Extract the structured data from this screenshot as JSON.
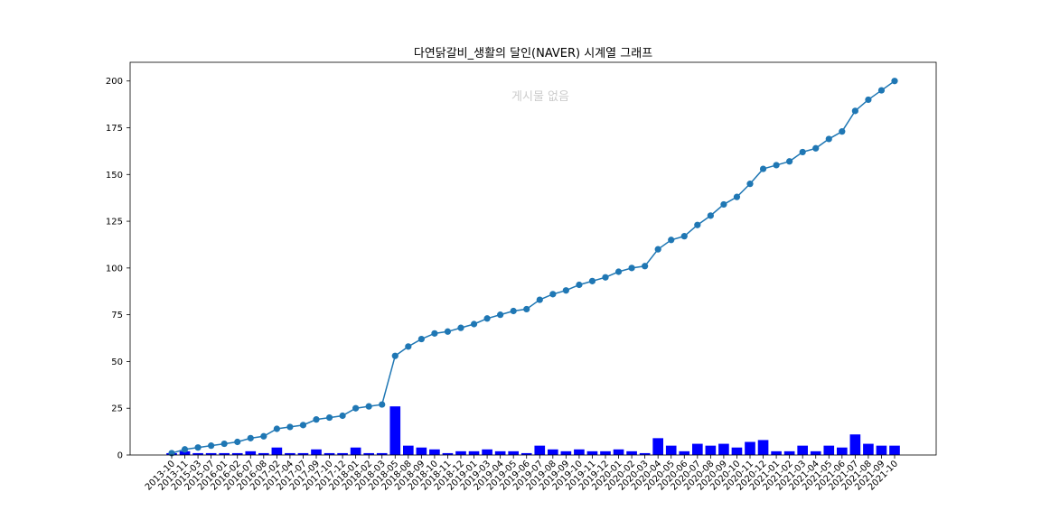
{
  "chart_data": {
    "type": "bar+line",
    "title": "다연닭갈비_생활의 달인(NAVER) 시계열 그래프",
    "annotation": "게시물 없음",
    "xlabel": "",
    "ylabel": "",
    "ylim": [
      0,
      210
    ],
    "yticks": [
      0,
      25,
      50,
      75,
      100,
      125,
      150,
      175,
      200
    ],
    "grid": false,
    "categories": [
      "2013-10",
      "2013-11",
      "2015-03",
      "2015-07",
      "2016-01",
      "2016-02",
      "2016-07",
      "2016-08",
      "2017-02",
      "2017-04",
      "2017-07",
      "2017-09",
      "2017-10",
      "2017-12",
      "2018-01",
      "2018-02",
      "2018-03",
      "2018-05",
      "2018-08",
      "2018-09",
      "2018-10",
      "2018-11",
      "2018-12",
      "2019-01",
      "2019-03",
      "2019-04",
      "2019-05",
      "2019-06",
      "2019-07",
      "2019-08",
      "2019-09",
      "2019-10",
      "2019-11",
      "2019-12",
      "2020-01",
      "2020-02",
      "2020-03",
      "2020-04",
      "2020-05",
      "2020-06",
      "2020-07",
      "2020-08",
      "2020-09",
      "2020-10",
      "2020-11",
      "2020-12",
      "2021-01",
      "2021-02",
      "2021-03",
      "2021-04",
      "2021-05",
      "2021-06",
      "2021-07",
      "2021-08",
      "2021-09",
      "2021-10"
    ],
    "series": [
      {
        "kind": "bar",
        "color": "#0000ff",
        "values": [
          1,
          2,
          1,
          1,
          1,
          1,
          2,
          1,
          4,
          1,
          1,
          3,
          1,
          1,
          4,
          1,
          1,
          26,
          5,
          4,
          3,
          1,
          2,
          2,
          3,
          2,
          2,
          1,
          5,
          3,
          2,
          3,
          2,
          2,
          3,
          2,
          1,
          9,
          5,
          2,
          6,
          5,
          6,
          4,
          7,
          8,
          2,
          2,
          5,
          2,
          5,
          4,
          11,
          6,
          5,
          5
        ]
      },
      {
        "kind": "line",
        "color": "#1f77b4",
        "values": [
          1,
          3,
          4,
          5,
          6,
          7,
          9,
          10,
          14,
          15,
          16,
          19,
          20,
          21,
          25,
          26,
          27,
          53,
          58,
          62,
          65,
          66,
          68,
          70,
          73,
          75,
          77,
          78,
          83,
          86,
          88,
          91,
          93,
          95,
          98,
          100,
          101,
          110,
          115,
          117,
          123,
          128,
          134,
          138,
          145,
          153,
          155,
          157,
          162,
          164,
          169,
          173,
          184,
          190,
          195,
          200
        ]
      }
    ]
  }
}
